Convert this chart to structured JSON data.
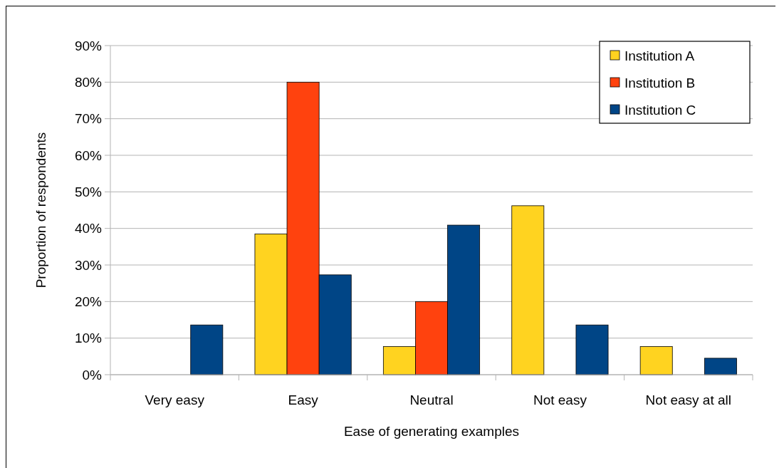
{
  "chart_data": {
    "type": "bar",
    "xlabel": "Ease of generating examples",
    "ylabel": "Proportion of respondents",
    "categories": [
      "Very easy",
      "Easy",
      "Neutral",
      "Not easy",
      "Not easy at all"
    ],
    "series": [
      {
        "name": "Institution A",
        "color": "#ffd320",
        "values": [
          0,
          38.5,
          7.7,
          46.2,
          7.7
        ]
      },
      {
        "name": "Institution B",
        "color": "#ff420e",
        "values": [
          0,
          80,
          20,
          0,
          0
        ]
      },
      {
        "name": "Institution C",
        "color": "#004586",
        "values": [
          13.6,
          27.3,
          40.9,
          13.6,
          4.5
        ]
      }
    ],
    "ylim": [
      0,
      90
    ],
    "yticks": [
      {
        "value": 0,
        "label": "0%"
      },
      {
        "value": 10,
        "label": "10%"
      },
      {
        "value": 20,
        "label": "20%"
      },
      {
        "value": 30,
        "label": "30%"
      },
      {
        "value": 40,
        "label": "40%"
      },
      {
        "value": 50,
        "label": "50%"
      },
      {
        "value": 60,
        "label": "60%"
      },
      {
        "value": 70,
        "label": "70%"
      },
      {
        "value": 80,
        "label": "80%"
      },
      {
        "value": 90,
        "label": "90%"
      }
    ],
    "grid": "y",
    "legend": "top right"
  }
}
